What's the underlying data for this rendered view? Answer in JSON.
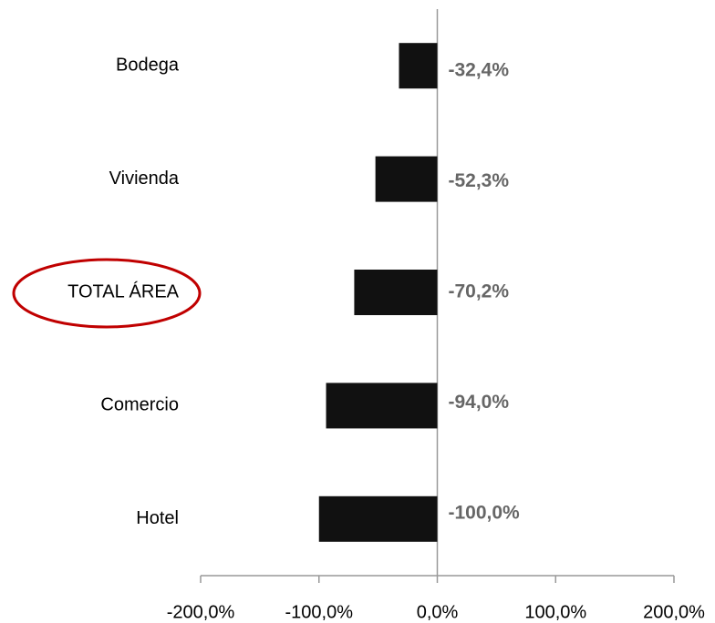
{
  "chart_data": {
    "type": "bar",
    "orientation": "horizontal",
    "categories": [
      "Bodega",
      "Vivienda",
      "TOTAL ÁREA",
      "Comercio",
      "Hotel"
    ],
    "values": [
      -32.4,
      -52.3,
      -70.2,
      -94.0,
      -100.0
    ],
    "value_labels": [
      "-32,4%",
      "-52,3%",
      "-70,2%",
      "-94,0%",
      "-100,0%"
    ],
    "color": "#111111",
    "xlim": [
      -200,
      200
    ],
    "xticks": [
      {
        "value": -200,
        "label": "-200,0%"
      },
      {
        "value": -100,
        "label": "-100,0%"
      },
      {
        "value": 0,
        "label": "0,0%"
      },
      {
        "value": 100,
        "label": "100,0%"
      },
      {
        "value": 200,
        "label": "200,0%"
      }
    ],
    "grid": false
  }
}
